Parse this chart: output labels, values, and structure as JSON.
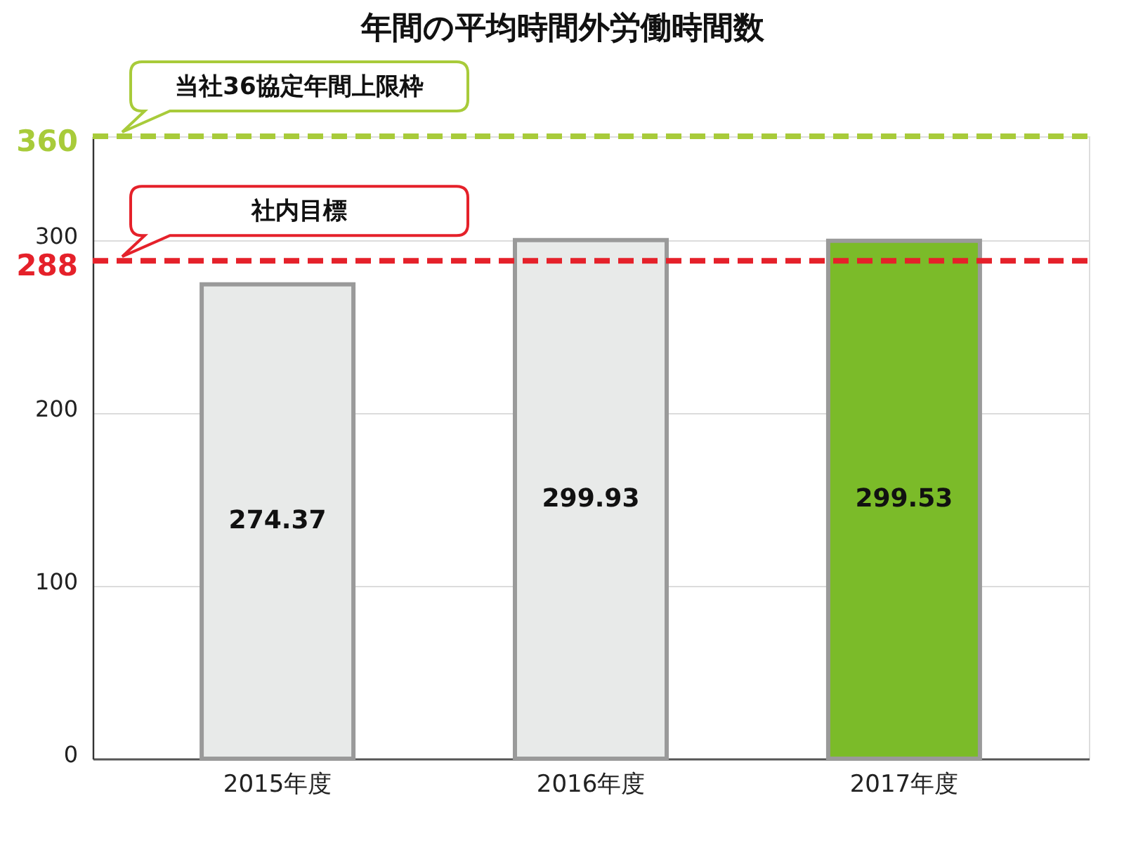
{
  "chart_data": {
    "type": "bar",
    "title": "年間の平均時間外労働時間数",
    "categories": [
      "2015年度",
      "2016年度",
      "2017年度"
    ],
    "values": [
      274.37,
      299.93,
      299.53
    ],
    "colors": [
      "#e8eae9",
      "#e8eae9",
      "#7bbb29"
    ],
    "data_labels": true,
    "ylim": [
      0,
      360
    ],
    "yticks": [
      0,
      100,
      200,
      288,
      300,
      360
    ],
    "grid": "y",
    "ref_lines": [
      {
        "axis": "y",
        "value": 360,
        "label": "当社36協定年間上限枠",
        "color": "#a8cb3a",
        "line_style": "dashed"
      },
      {
        "axis": "y",
        "value": 288,
        "label": "社内目標",
        "color": "#e5212a",
        "line_style": "dashed"
      }
    ]
  }
}
